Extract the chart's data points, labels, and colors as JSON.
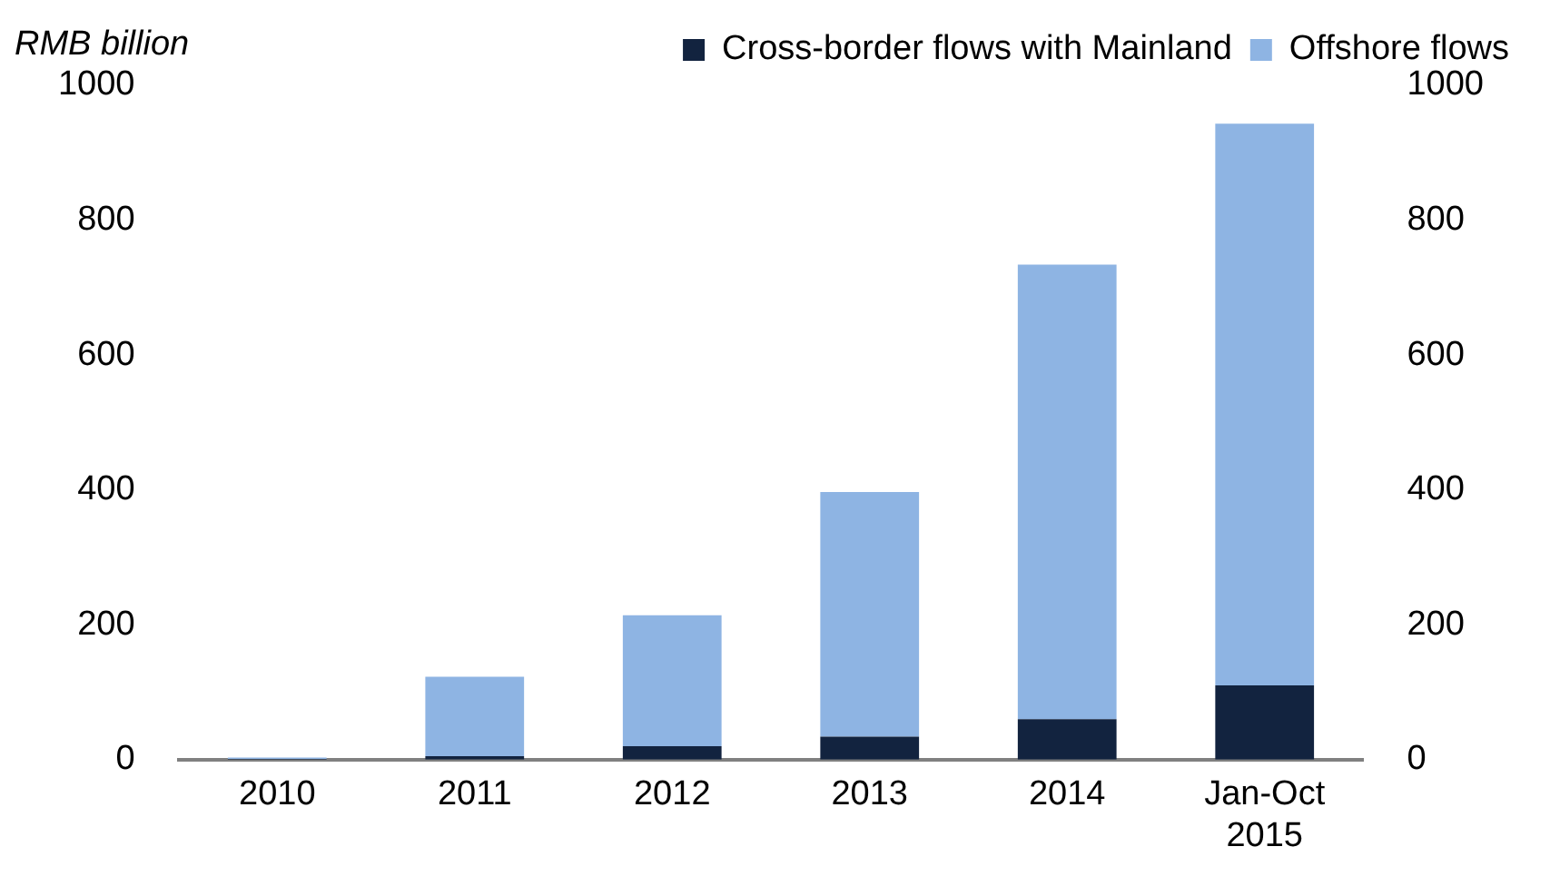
{
  "chart_data": {
    "type": "bar",
    "ylabel": "RMB billion",
    "stacked": true,
    "categories": [
      "2010",
      "2011",
      "2012",
      "2013",
      "2014",
      "Jan-Oct\n2015"
    ],
    "series": [
      {
        "name": "Cross-border flows with Mainland",
        "color": "#12233f",
        "values": [
          1,
          5,
          20,
          34,
          60,
          110
        ]
      },
      {
        "name": "Offshore flows",
        "color": "#8eb4e3",
        "values": [
          2,
          118,
          194,
          363,
          674,
          833
        ]
      }
    ],
    "ylim": [
      0,
      1000
    ],
    "yticks": [
      0,
      200,
      400,
      600,
      800,
      1000
    ],
    "y2lim": [
      0,
      1000
    ],
    "y2ticks": [
      0,
      200,
      400,
      600,
      800,
      1000
    ],
    "grid": false,
    "legend": "top"
  }
}
